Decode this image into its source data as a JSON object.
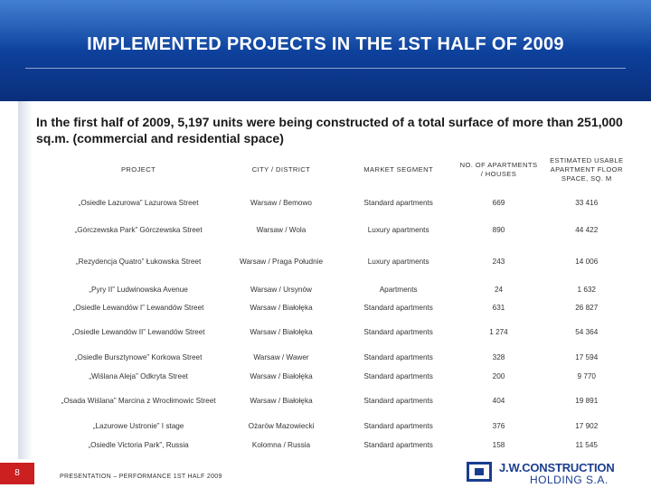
{
  "title": "IMPLEMENTED PROJECTS IN THE 1ST HALF OF 2009",
  "intro": "In the first half of 2009, 5,197 units were being constructed of a total surface of more than 251,000 sq.m. (commercial and residential space)",
  "table": {
    "headers": [
      "PROJECT",
      "CITY / DISTRICT",
      "MARKET SEGMENT",
      "NO. OF APARTMENTS / HOUSES",
      "ESTIMATED USABLE APARTMENT FLOOR SPACE, SQ. M"
    ],
    "rows": [
      [
        "„Osiedle Lazurowa” Lazurowa Street",
        "Warsaw / Bemowo",
        "Standard apartments",
        "669",
        "33 416"
      ],
      [
        "„Górczewska Park” Górczewska Street",
        "Warsaw / Wola",
        "Luxury apartments",
        "890",
        "44 422"
      ],
      [
        "„Rezydencja Quatro” Łukowska Street",
        "Warsaw / Praga Południe",
        "Luxury apartments",
        "243",
        "14 006"
      ],
      [
        "„Pyry II” Ludwinowska Avenue",
        "Warsaw / Ursynów",
        "Apartments",
        "24",
        "1 632"
      ],
      [
        "„Osiedle Lewandów I” Lewandów Street",
        "Warsaw / Białołęka",
        "Standard apartments",
        "631",
        "26 827"
      ],
      [
        "„Osiedle Lewandów II” Lewandów Street",
        "Warsaw / Białołęka",
        "Standard apartments",
        "1 274",
        "54 364"
      ],
      [
        "„Osiedle Bursztynowe” Korkowa Street",
        "Warsaw / Wawer",
        "Standard apartments",
        "328",
        "17 594"
      ],
      [
        "„Wiślana Aleja” Odkryta Street",
        "Warsaw / Białołęka",
        "Standard apartments",
        "200",
        "9 770"
      ],
      [
        "„Osada Wiślana” Marcina z Wrocłimowic Street",
        "Warsaw / Białołęka",
        "Standard apartments",
        "404",
        "19 891"
      ],
      [
        "„Lazurowe Ustronie” I stage",
        "Ożarów Mazowiecki",
        "Standard apartments",
        "376",
        "17 902"
      ],
      [
        "„Osiedle Victoria Park”, Russia",
        "Kolomna / Russia",
        "Standard apartments",
        "158",
        "11 545"
      ]
    ]
  },
  "footer": {
    "page_number": "8",
    "text": "PRESENTATION – PERFORMANCE 1ST HALF 2009"
  },
  "logo": {
    "name": "J.W.CONSTRUCTION",
    "sub": "HOLDING S.A.",
    "color": "#1b3d8f"
  },
  "colors": {
    "header": "#0d3f99",
    "page_badge": "#cc1f1f"
  }
}
